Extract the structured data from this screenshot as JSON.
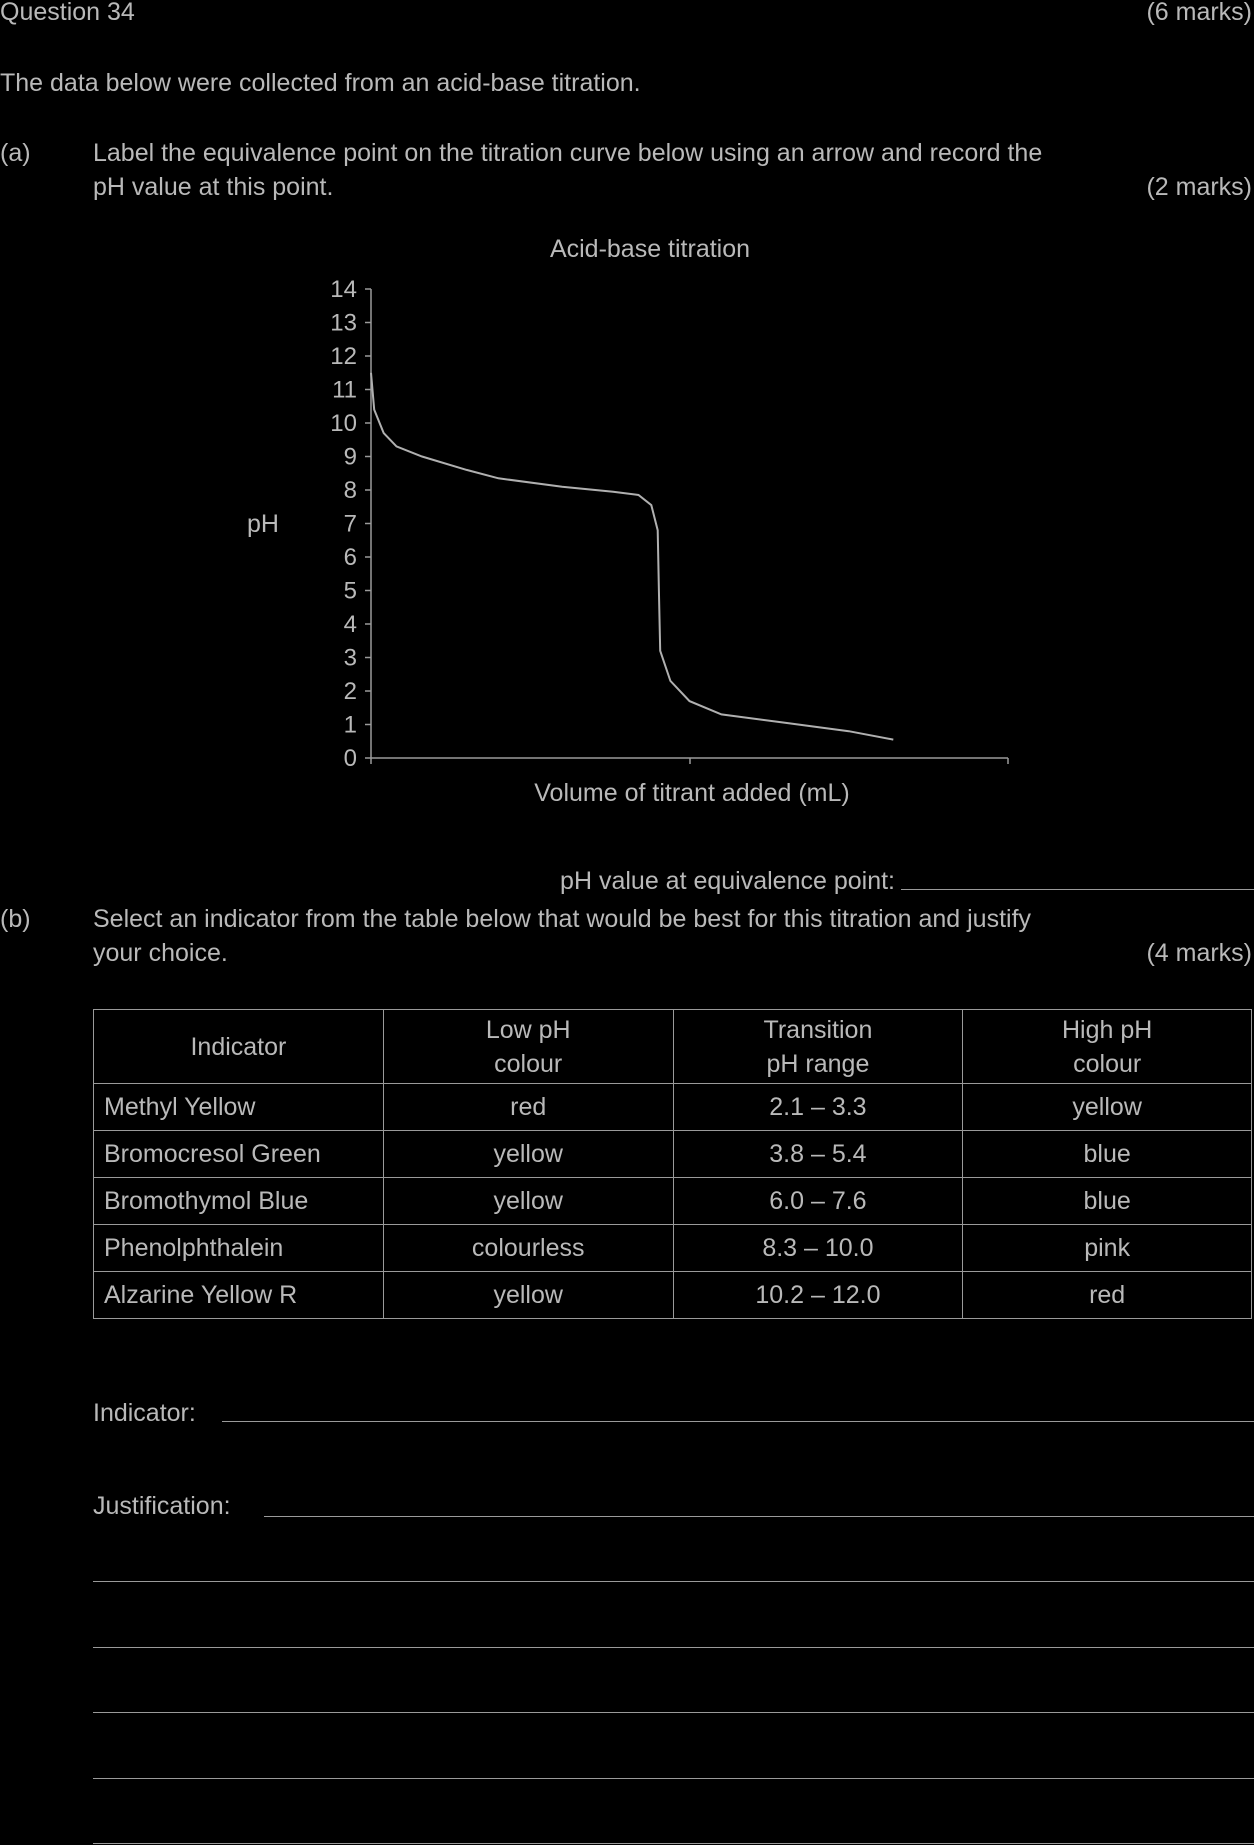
{
  "question": {
    "title": "Question 34",
    "marks": "(6 marks)"
  },
  "intro": "The data below were collected from an acid-base titration.",
  "part_a": {
    "label": "(a)",
    "line1": "Label the equivalence point on the titration curve below using an arrow and record the",
    "line2": "pH value at this point.",
    "marks": "(2 marks)",
    "answer_label": "pH value at equivalence point:"
  },
  "chart_data": {
    "type": "line",
    "title": "Acid-base titration",
    "xlabel": "Volume of titrant added (mL)",
    "ylabel": "pH",
    "ylim": [
      0,
      14
    ],
    "y_ticks": [
      "0",
      "1",
      "2",
      "3",
      "4",
      "5",
      "6",
      "7",
      "8",
      "9",
      "10",
      "11",
      "12",
      "13",
      "14"
    ],
    "xlim": [
      0,
      1
    ],
    "grid": false,
    "series": [
      {
        "points": [
          [
            0.0,
            11.5
          ],
          [
            0.005,
            10.4
          ],
          [
            0.02,
            9.7
          ],
          [
            0.04,
            9.3
          ],
          [
            0.08,
            9.0
          ],
          [
            0.15,
            8.6
          ],
          [
            0.2,
            8.35
          ],
          [
            0.3,
            8.1
          ],
          [
            0.38,
            7.95
          ],
          [
            0.42,
            7.85
          ],
          [
            0.44,
            7.55
          ],
          [
            0.45,
            6.8
          ],
          [
            0.452,
            5.0
          ],
          [
            0.454,
            3.2
          ],
          [
            0.47,
            2.3
          ],
          [
            0.5,
            1.7
          ],
          [
            0.55,
            1.3
          ],
          [
            0.65,
            1.05
          ],
          [
            0.75,
            0.8
          ],
          [
            0.82,
            0.55
          ]
        ]
      }
    ]
  },
  "part_b": {
    "label": "(b)",
    "line1": "Select an indicator from the table below that would be best for this titration and justify",
    "line2": "your choice.",
    "marks": "(4 marks)",
    "indicator_label": "Indicator:",
    "justification_label": "Justification:"
  },
  "table": {
    "headers": [
      "Indicator",
      "Low pH\ncolour",
      "Transition\npH range",
      "High pH\ncolour"
    ],
    "rows": [
      [
        "Methyl Yellow",
        "red",
        "2.1 – 3.3",
        "yellow"
      ],
      [
        "Bromocresol Green",
        "yellow",
        "3.8 – 5.4",
        "blue"
      ],
      [
        "Bromothymol Blue",
        "yellow",
        "6.0 – 7.6",
        "blue"
      ],
      [
        "Phenolphthalein",
        "colourless",
        "8.3 – 10.0",
        "pink"
      ],
      [
        "Alzarine Yellow R",
        "yellow",
        "10.2 – 12.0",
        "red"
      ]
    ]
  }
}
